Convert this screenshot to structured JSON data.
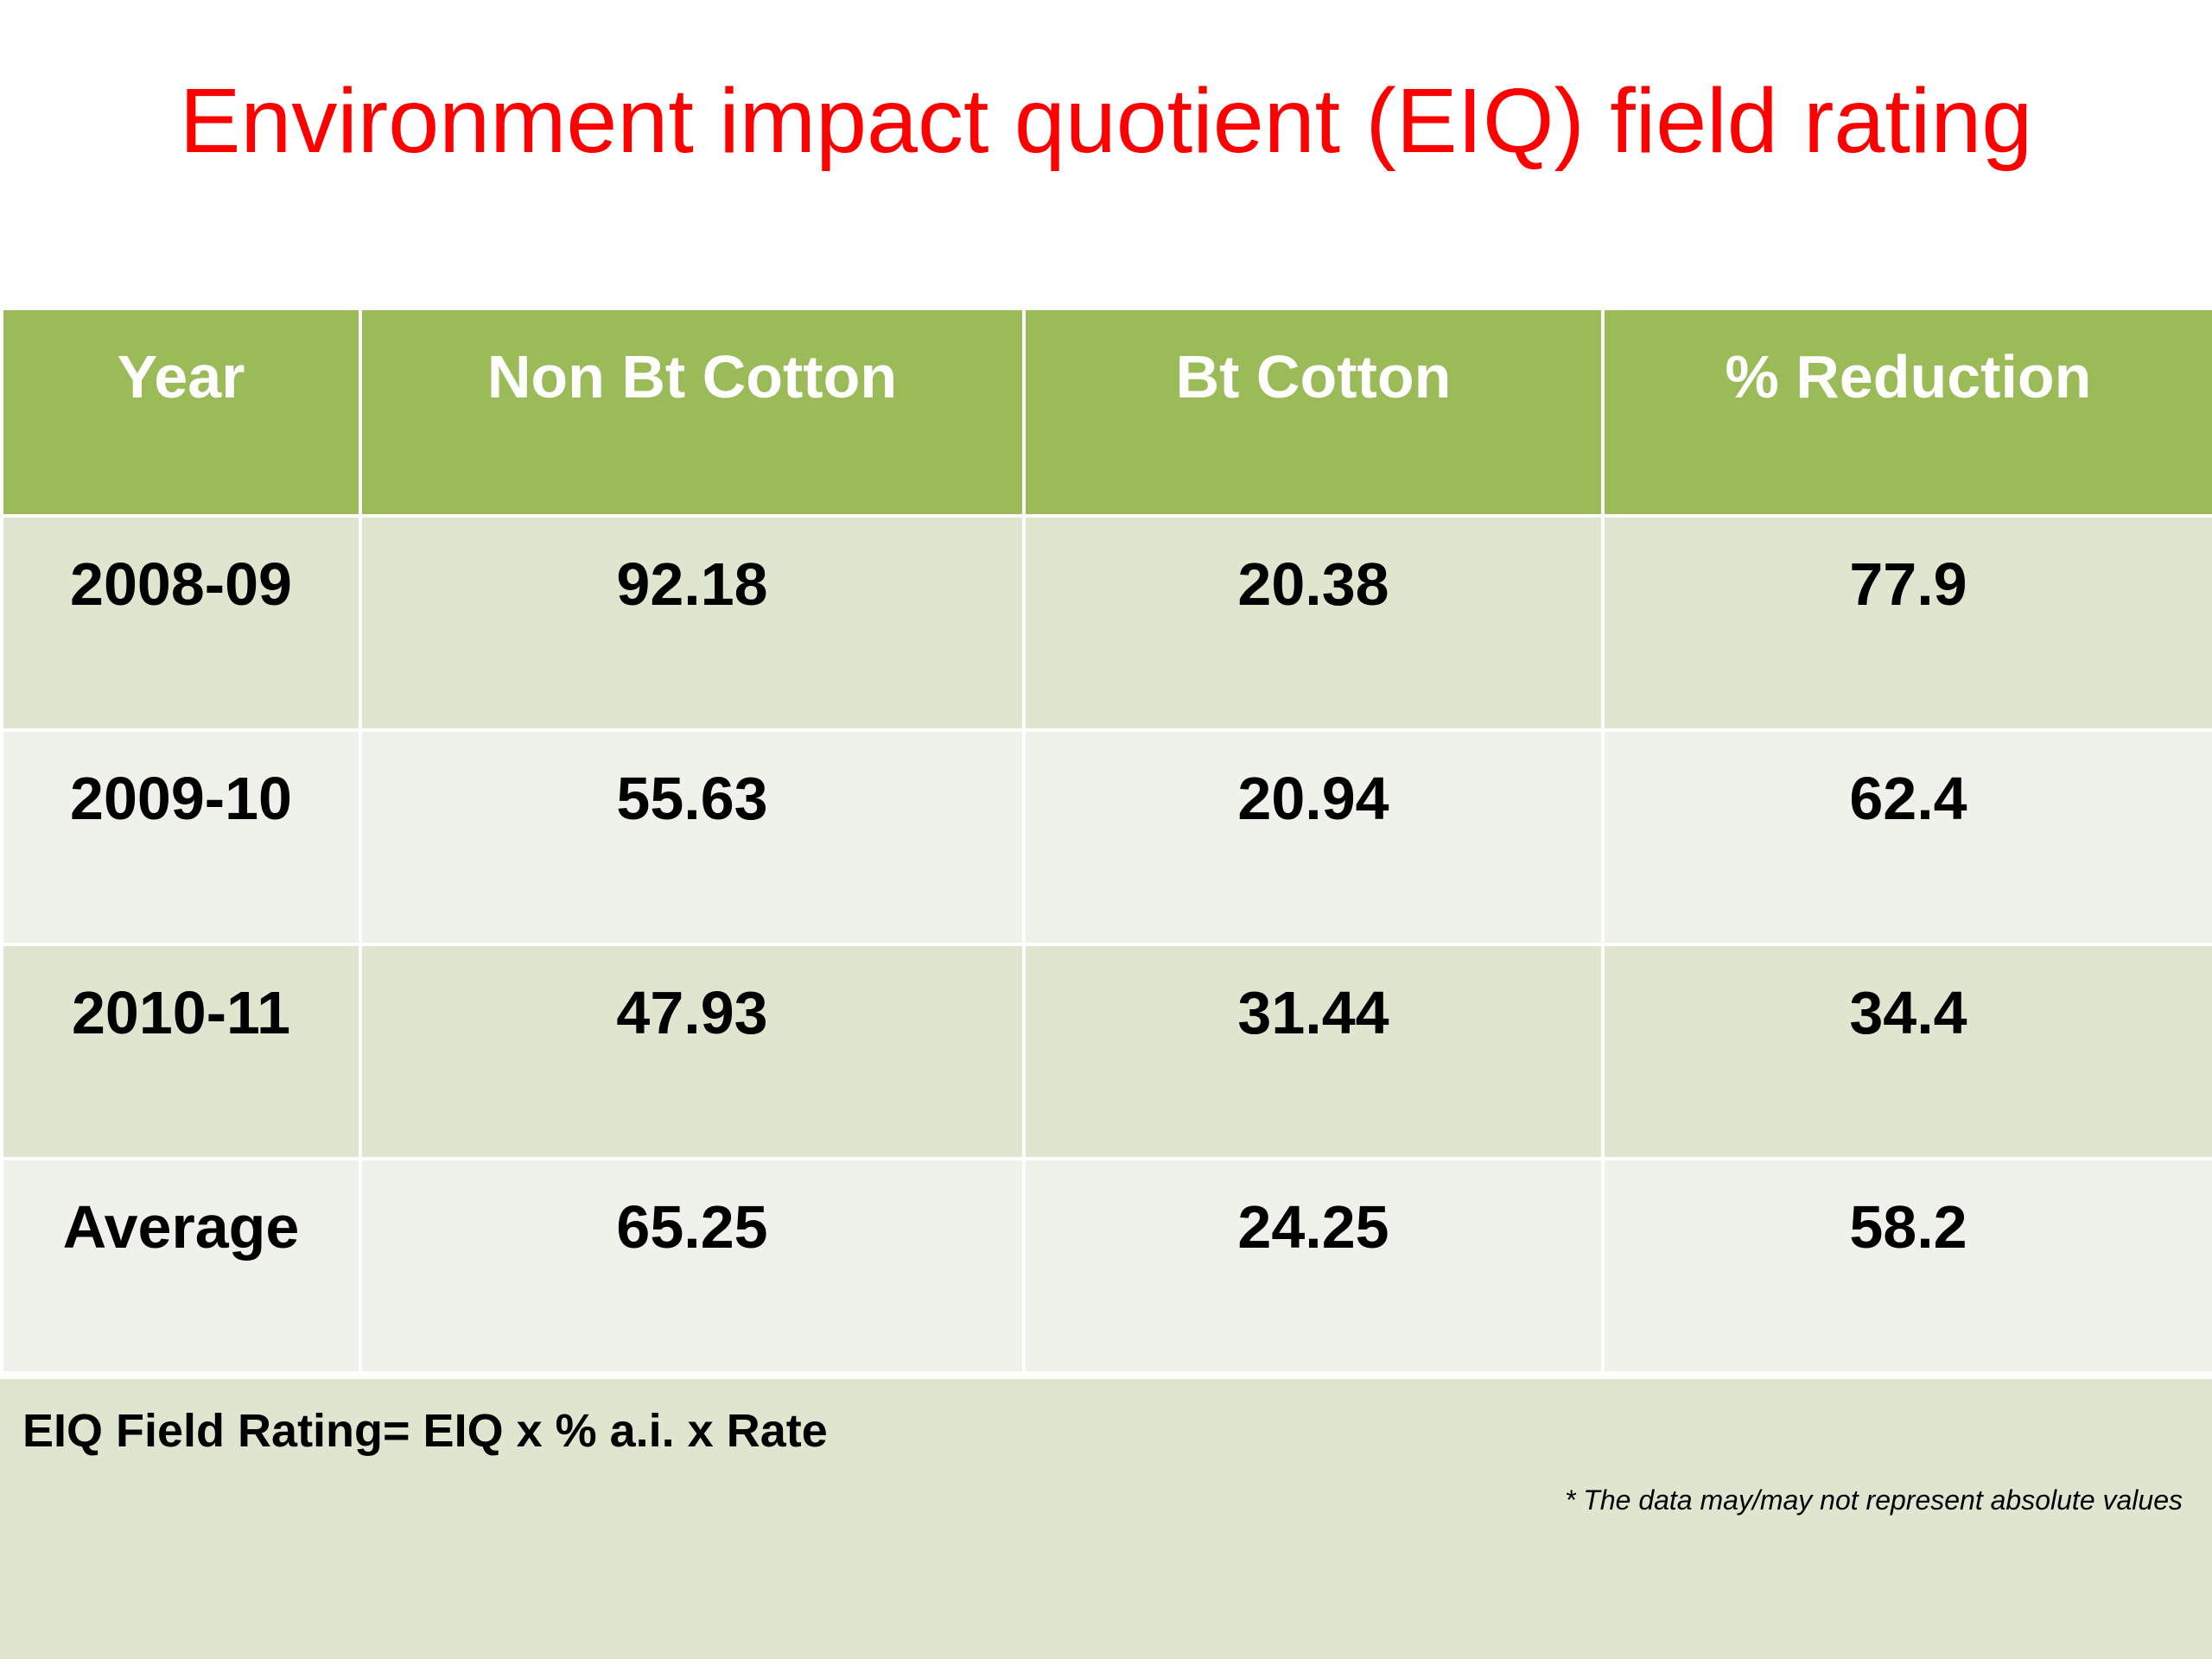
{
  "title": "Environment impact quotient (EIQ) field rating",
  "table": {
    "headers": [
      "Year",
      "Non Bt Cotton",
      "Bt Cotton",
      "% Reduction"
    ],
    "rows": [
      [
        "2008-09",
        "92.18",
        "20.38",
        "77.9"
      ],
      [
        "2009-10",
        "55.63",
        "20.94",
        "62.4"
      ],
      [
        "2010-11",
        "47.93",
        "31.44",
        "34.4"
      ],
      [
        "Average",
        "65.25",
        "24.25",
        "58.2"
      ]
    ]
  },
  "footer": {
    "formula": "EIQ Field Rating= EIQ x % a.i. x Rate",
    "disclaimer": "* The data may/may not represent absolute values"
  },
  "colors": {
    "title": "#ff0000",
    "header_bg": "#9bbb59",
    "row_odd_bg": "#dfe6d0",
    "row_even_bg": "#eef2ea"
  }
}
